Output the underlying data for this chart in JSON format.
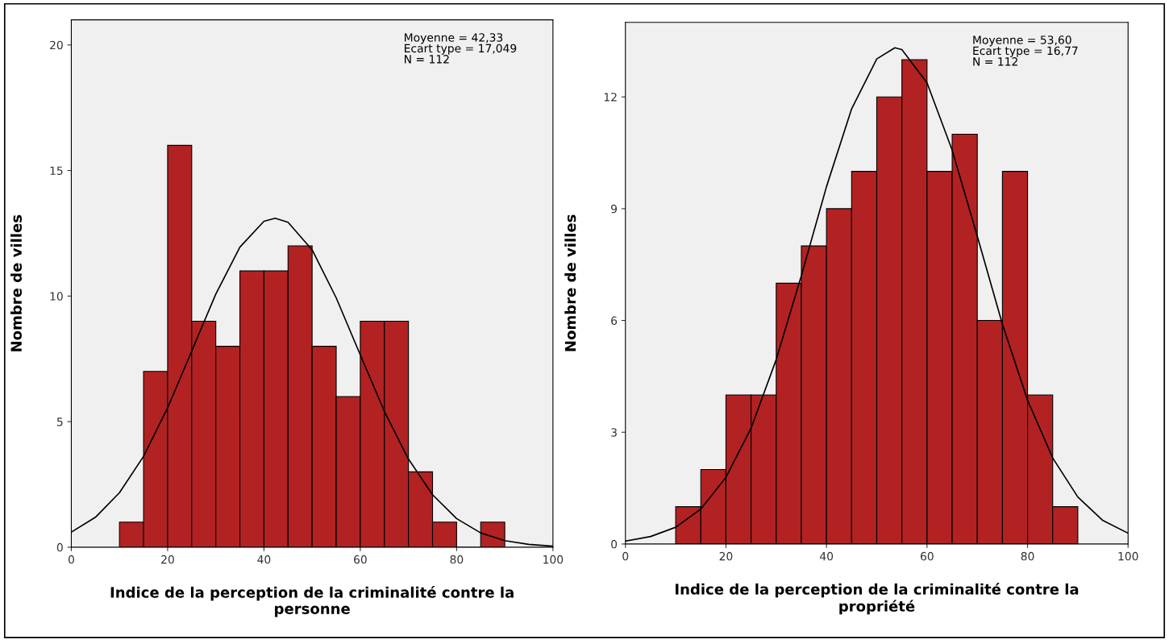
{
  "chart_data": [
    {
      "type": "histogram",
      "xlabel": "Indice de la perception de la criminalité contre la\npersonne",
      "ylabel": "Nombre de villes",
      "xlim": [
        0,
        100
      ],
      "xticks": [
        0,
        20,
        40,
        60,
        80,
        100
      ],
      "ylim": [
        0,
        21
      ],
      "yticks": [
        0,
        5,
        10,
        15,
        20
      ],
      "annotations": [
        "Moyenne = 42,33",
        "Ecart type = 17,049",
        "N = 112"
      ],
      "series": [
        {
          "color": "#b22222",
          "bins": [
            10,
            15,
            20,
            25,
            30,
            35,
            40,
            45,
            50,
            55,
            60,
            65,
            70,
            75,
            80,
            85,
            90
          ],
          "values": [
            1,
            7,
            16,
            9,
            8,
            11,
            11,
            12,
            8,
            6,
            9,
            9,
            3,
            1,
            0,
            1
          ]
        },
        {
          "type": "line",
          "color": "#000000",
          "x": [
            0,
            5,
            10,
            15,
            20,
            25,
            30,
            35,
            40,
            42.33,
            45,
            50,
            55,
            60,
            65,
            70,
            75,
            80,
            85,
            90,
            95,
            100
          ],
          "values": [
            0.6,
            1.19,
            2.17,
            3.62,
            5.55,
            7.81,
            10.08,
            11.95,
            12.98,
            13.1,
            12.94,
            11.84,
            9.93,
            7.66,
            5.41,
            3.51,
            2.09,
            1.14,
            0.57,
            0.26,
            0.11,
            0.04
          ]
        }
      ]
    },
    {
      "type": "histogram",
      "xlabel": "Indice de la perception de la criminalité contre la\npropriété",
      "ylabel": "Nombre de villes",
      "xlim": [
        0,
        100
      ],
      "xticks": [
        0,
        20,
        40,
        60,
        80,
        100
      ],
      "ylim": [
        0,
        14
      ],
      "yticks": [
        0,
        3,
        6,
        9,
        12
      ],
      "annotations": [
        "Moyenne = 53,60",
        "Ecart type = 16,77",
        "N = 112"
      ],
      "series": [
        {
          "color": "#b22222",
          "bins": [
            10,
            15,
            20,
            25,
            30,
            35,
            40,
            45,
            50,
            55,
            60,
            65,
            70,
            75,
            80,
            85,
            90
          ],
          "values": [
            1,
            2,
            4,
            4,
            7,
            8,
            9,
            10,
            12,
            13,
            10,
            11,
            6,
            10,
            4,
            1
          ]
        },
        {
          "type": "line",
          "color": "#000000",
          "x": [
            0,
            5,
            10,
            15,
            20,
            25,
            30,
            35,
            40,
            45,
            50,
            53.6,
            55,
            60,
            65,
            70,
            75,
            80,
            85,
            90,
            95,
            100
          ],
          "values": [
            0.08,
            0.2,
            0.45,
            0.94,
            1.79,
            3.11,
            4.95,
            7.2,
            9.59,
            11.68,
            13.02,
            13.32,
            13.27,
            12.38,
            10.57,
            8.26,
            5.9,
            3.86,
            2.31,
            1.26,
            0.63,
            0.29
          ]
        }
      ]
    }
  ]
}
